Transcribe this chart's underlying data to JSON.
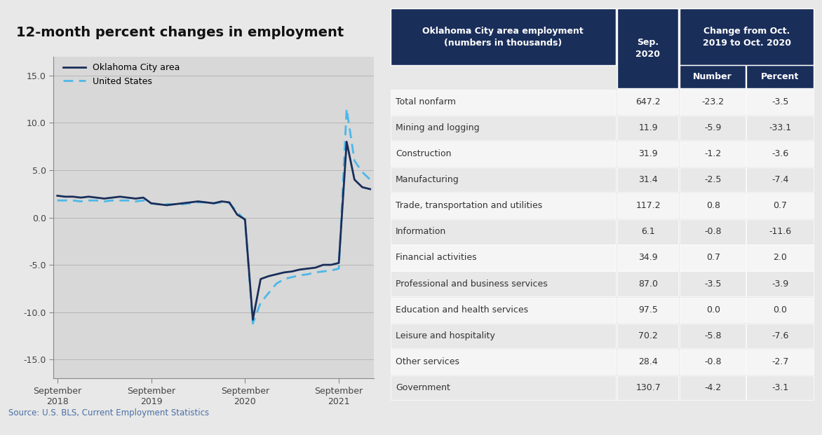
{
  "chart_title": "12-month percent changes in employment",
  "bg_color": "#e8e8e8",
  "chart_bg_color": "#d8d8d8",
  "white_bg": "#ffffff",
  "okc_line_color": "#1a2e5a",
  "us_line_color": "#4db8e8",
  "okc_label": "Oklahoma City area",
  "us_label": "United States",
  "ylim": [
    -17,
    17
  ],
  "yticks": [
    -15.0,
    -10.0,
    -5.0,
    0.0,
    5.0,
    10.0,
    15.0
  ],
  "xtick_labels": [
    "September\n2018",
    "September\n2019",
    "September\n2020",
    "September\n2021"
  ],
  "source_text": "Source: U.S. BLS, Current Employment Statistics",
  "okc_x": [
    0,
    1,
    2,
    3,
    4,
    5,
    6,
    7,
    8,
    9,
    10,
    11,
    12,
    13,
    14,
    15,
    16,
    17,
    18,
    19,
    20,
    21,
    22,
    23,
    24,
    25,
    26,
    27,
    28,
    29,
    30,
    31,
    32,
    33,
    34,
    35,
    36,
    37,
    38,
    39,
    40
  ],
  "okc_y": [
    2.3,
    2.2,
    2.2,
    2.1,
    2.2,
    2.1,
    2.0,
    2.1,
    2.2,
    2.1,
    2.0,
    2.1,
    1.5,
    1.4,
    1.3,
    1.4,
    1.5,
    1.6,
    1.7,
    1.6,
    1.5,
    1.7,
    1.6,
    0.3,
    -0.2,
    -10.8,
    -6.5,
    -6.2,
    -6.0,
    -5.8,
    -5.7,
    -5.5,
    -5.4,
    -5.3,
    -5.0,
    -5.0,
    -4.8,
    8.0,
    4.0,
    3.2,
    3.0
  ],
  "us_x": [
    0,
    1,
    2,
    3,
    4,
    5,
    6,
    7,
    8,
    9,
    10,
    11,
    12,
    13,
    14,
    15,
    16,
    17,
    18,
    19,
    20,
    21,
    22,
    23,
    24,
    25,
    26,
    27,
    28,
    29,
    30,
    31,
    32,
    33,
    34,
    35,
    36,
    37,
    38,
    39,
    40
  ],
  "us_y": [
    1.8,
    1.8,
    1.8,
    1.7,
    1.8,
    1.8,
    1.7,
    1.8,
    1.8,
    1.8,
    1.7,
    1.8,
    1.5,
    1.4,
    1.4,
    1.4,
    1.4,
    1.5,
    1.6,
    1.6,
    1.5,
    1.6,
    1.5,
    0.6,
    -0.3,
    -11.2,
    -9.0,
    -8.0,
    -7.0,
    -6.5,
    -6.3,
    -6.1,
    -6.0,
    -5.8,
    -5.7,
    -5.6,
    -5.4,
    11.5,
    6.0,
    4.8,
    4.0
  ],
  "table_header_bg": "#1a2e5a",
  "table_header_text": "#ffffff",
  "table_row_odd_bg": "#e8e8e8",
  "table_row_even_bg": "#f5f5f5",
  "table_text_color": "#333333",
  "table_col1_header": "Oklahoma City area employment\n(numbers in thousands)",
  "table_col2_header": "Sep.\n2020",
  "table_col3_header": "Change from Oct.\n2019 to Oct. 2020",
  "table_col3a_header": "Number",
  "table_col3b_header": "Percent",
  "table_rows": [
    [
      "Total nonfarm",
      "647.2",
      "-23.2",
      "-3.5"
    ],
    [
      "Mining and logging",
      "11.9",
      "-5.9",
      "-33.1"
    ],
    [
      "Construction",
      "31.9",
      "-1.2",
      "-3.6"
    ],
    [
      "Manufacturing",
      "31.4",
      "-2.5",
      "-7.4"
    ],
    [
      "Trade, transportation and utilities",
      "117.2",
      "0.8",
      "0.7"
    ],
    [
      "Information",
      "6.1",
      "-0.8",
      "-11.6"
    ],
    [
      "Financial activities",
      "34.9",
      "0.7",
      "2.0"
    ],
    [
      "Professional and business services",
      "87.0",
      "-3.5",
      "-3.9"
    ],
    [
      "Education and health services",
      "97.5",
      "0.0",
      "0.0"
    ],
    [
      "Leisure and hospitality",
      "70.2",
      "-5.8",
      "-7.6"
    ],
    [
      "Other services",
      "28.4",
      "-0.8",
      "-2.7"
    ],
    [
      "Government",
      "130.7",
      "-4.2",
      "-3.1"
    ]
  ]
}
